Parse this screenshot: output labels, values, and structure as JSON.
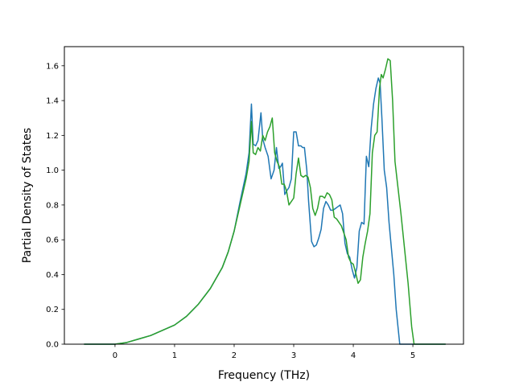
{
  "chart_data": {
    "type": "line",
    "title": "",
    "xlabel": "Frequency (THz)",
    "ylabel": "Partial Density of States",
    "xlim": [
      -0.85,
      5.85
    ],
    "ylim": [
      0.0,
      1.71
    ],
    "xticks": [
      0,
      1,
      2,
      3,
      4,
      5
    ],
    "yticks": [
      0.0,
      0.2,
      0.4,
      0.6,
      0.8,
      1.0,
      1.2,
      1.4,
      1.6
    ],
    "grid": false,
    "legend": "none",
    "series": [
      {
        "color": "#1f77b4",
        "x": [
          -0.52,
          0.0,
          0.2,
          0.4,
          0.6,
          0.8,
          1.0,
          1.2,
          1.4,
          1.6,
          1.8,
          1.9,
          2.0,
          2.1,
          2.2,
          2.25,
          2.29,
          2.32,
          2.36,
          2.4,
          2.45,
          2.48,
          2.52,
          2.57,
          2.62,
          2.67,
          2.71,
          2.75,
          2.78,
          2.81,
          2.85,
          2.88,
          2.92,
          2.96,
          3.0,
          3.04,
          3.08,
          3.12,
          3.15,
          3.18,
          3.22,
          3.25,
          3.28,
          3.3,
          3.34,
          3.38,
          3.42,
          3.46,
          3.5,
          3.54,
          3.58,
          3.62,
          3.66,
          3.7,
          3.74,
          3.78,
          3.82,
          3.86,
          3.9,
          3.94,
          3.98,
          4.02,
          4.06,
          4.1,
          4.14,
          4.18,
          4.22,
          4.26,
          4.3,
          4.34,
          4.38,
          4.42,
          4.45,
          4.48,
          4.52,
          4.56,
          4.6,
          4.64,
          4.68,
          4.72,
          4.78,
          4.84,
          4.9,
          4.96,
          5.0,
          5.02,
          5.06,
          5.2,
          5.55
        ],
        "y": [
          0.0,
          0.0,
          0.01,
          0.03,
          0.05,
          0.08,
          0.11,
          0.16,
          0.23,
          0.32,
          0.44,
          0.53,
          0.65,
          0.82,
          0.98,
          1.1,
          1.38,
          1.15,
          1.14,
          1.17,
          1.33,
          1.18,
          1.13,
          1.08,
          0.95,
          1.0,
          1.13,
          1.01,
          1.02,
          1.04,
          0.86,
          0.88,
          0.9,
          0.95,
          1.22,
          1.22,
          1.14,
          1.14,
          1.13,
          1.13,
          1.0,
          0.82,
          0.68,
          0.59,
          0.56,
          0.57,
          0.61,
          0.66,
          0.78,
          0.82,
          0.8,
          0.77,
          0.77,
          0.78,
          0.79,
          0.8,
          0.75,
          0.58,
          0.52,
          0.5,
          0.43,
          0.38,
          0.44,
          0.65,
          0.7,
          0.69,
          1.08,
          1.02,
          1.24,
          1.38,
          1.47,
          1.53,
          1.5,
          1.3,
          1.0,
          0.9,
          0.7,
          0.55,
          0.4,
          0.2,
          0.0,
          0.0,
          0.0,
          0.0,
          0.0,
          0.0,
          0.0,
          0.0,
          0.0
        ]
      },
      {
        "color": "#2ca02c",
        "x": [
          -0.52,
          0.0,
          0.2,
          0.4,
          0.6,
          0.8,
          1.0,
          1.2,
          1.4,
          1.6,
          1.8,
          1.9,
          2.0,
          2.1,
          2.2,
          2.25,
          2.29,
          2.32,
          2.36,
          2.4,
          2.44,
          2.48,
          2.52,
          2.56,
          2.6,
          2.64,
          2.68,
          2.72,
          2.76,
          2.8,
          2.84,
          2.88,
          2.92,
          2.96,
          3.0,
          3.04,
          3.08,
          3.12,
          3.16,
          3.2,
          3.24,
          3.28,
          3.32,
          3.36,
          3.4,
          3.44,
          3.48,
          3.52,
          3.56,
          3.6,
          3.64,
          3.68,
          3.72,
          3.76,
          3.8,
          3.84,
          3.88,
          3.92,
          3.96,
          4.0,
          4.04,
          4.08,
          4.12,
          4.16,
          4.2,
          4.24,
          4.28,
          4.32,
          4.36,
          4.4,
          4.44,
          4.47,
          4.5,
          4.54,
          4.58,
          4.62,
          4.66,
          4.7,
          4.75,
          4.8,
          4.86,
          4.92,
          4.98,
          5.02,
          5.06,
          5.2,
          5.55
        ],
        "y": [
          0.0,
          0.0,
          0.01,
          0.03,
          0.05,
          0.08,
          0.11,
          0.16,
          0.23,
          0.32,
          0.44,
          0.53,
          0.65,
          0.8,
          0.95,
          1.05,
          1.28,
          1.1,
          1.09,
          1.13,
          1.11,
          1.2,
          1.17,
          1.22,
          1.25,
          1.3,
          1.1,
          1.05,
          1.02,
          0.92,
          0.92,
          0.88,
          0.8,
          0.82,
          0.84,
          0.98,
          1.07,
          0.97,
          0.96,
          0.97,
          0.96,
          0.9,
          0.78,
          0.74,
          0.78,
          0.85,
          0.85,
          0.84,
          0.87,
          0.86,
          0.83,
          0.73,
          0.72,
          0.7,
          0.68,
          0.64,
          0.6,
          0.5,
          0.47,
          0.46,
          0.41,
          0.35,
          0.37,
          0.5,
          0.58,
          0.65,
          0.75,
          1.1,
          1.2,
          1.22,
          1.47,
          1.55,
          1.53,
          1.58,
          1.64,
          1.63,
          1.4,
          1.05,
          0.9,
          0.75,
          0.55,
          0.35,
          0.1,
          0.0,
          0.0,
          0.0,
          0.0
        ]
      }
    ]
  }
}
